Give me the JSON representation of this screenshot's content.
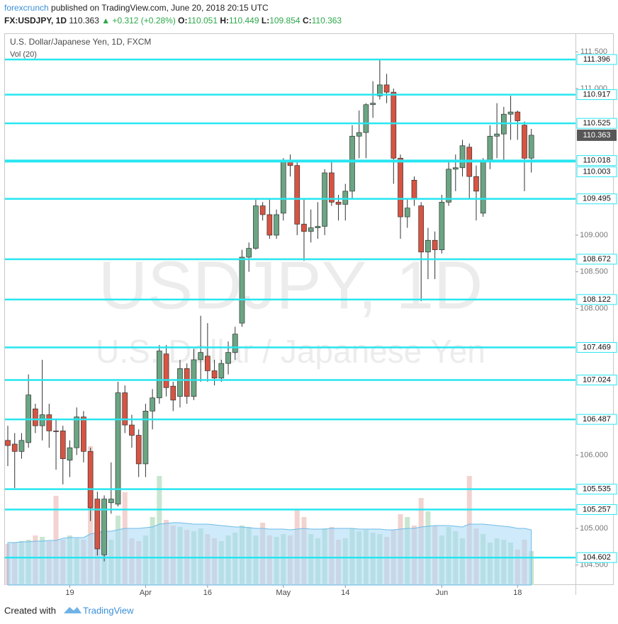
{
  "header": {
    "publisher": "forexcrunch",
    "published": "published on TradingView.com, June 20, 2018 20:15 UTC",
    "symbol": "FX:USDJPY, 1D",
    "change": "▲ +0.312 (+0.28%)",
    "o": "O:",
    "h": "H:",
    "l": "L:",
    "c": "C:"
  },
  "chart_data": {
    "type": "candlestick",
    "title": "U.S. Dollar/Japanese Yen, 1D, FXCM",
    "volume_label": "Vol (20)",
    "watermark": "USDJPY, 1D",
    "watermark_subtitle": "U.S. Dollar / Japanese Yen",
    "categories": [
      null,
      null,
      null,
      null,
      null,
      null,
      null,
      null,
      null,
      "19",
      null,
      null,
      null,
      null,
      null,
      null,
      null,
      null,
      null,
      null,
      "Apr",
      null,
      null,
      null,
      null,
      null,
      null,
      null,
      null,
      "16",
      null,
      null,
      null,
      null,
      null,
      null,
      null,
      null,
      null,
      null,
      "May",
      null,
      null,
      null,
      null,
      null,
      null,
      null,
      null,
      "14",
      null,
      null,
      null,
      null,
      null,
      null,
      null,
      null,
      null,
      null,
      null,
      null,
      null,
      "Jun",
      null,
      null,
      null,
      null,
      null,
      null,
      null,
      null,
      null,
      null,
      "18",
      null,
      null
    ],
    "open": [
      106.2,
      106.15,
      106.05,
      106.17,
      106.63,
      106.4,
      106.55,
      106.33,
      106.33,
      105.93,
      106.1,
      106.52,
      106.05,
      105.4,
      104.64,
      105.35,
      105.33,
      106.85,
      106.41,
      106.27,
      105.88,
      106.6,
      106.78,
      107.38,
      106.94,
      106.8,
      107.18,
      106.8,
      107.3,
      107.35,
      107.15,
      107.05,
      107.25,
      107.4,
      107.8,
      108.7,
      108.82,
      109.4,
      109.28,
      109.0,
      109.3,
      110.0,
      109.95,
      109.15,
      109.05,
      109.1,
      109.12,
      109.85,
      109.45,
      109.42,
      109.6,
      110.35,
      110.4,
      110.78,
      110.9,
      111.05,
      110.95,
      110.05,
      109.25,
      109.75,
      109.4,
      108.77,
      108.93,
      108.8,
      109.45,
      109.9,
      109.92,
      110.2,
      109.8,
      109.3,
      110.0,
      110.35,
      110.38,
      110.65,
      110.68,
      110.5,
      110.051
    ],
    "high": [
      106.4,
      106.3,
      106.3,
      107.1,
      106.7,
      107.3,
      106.7,
      106.5,
      106.4,
      106.2,
      106.65,
      106.6,
      106.1,
      105.5,
      105.45,
      105.9,
      107.0,
      106.95,
      106.55,
      106.35,
      106.7,
      106.9,
      107.5,
      107.5,
      107.0,
      107.3,
      107.25,
      107.45,
      107.9,
      107.8,
      107.3,
      107.3,
      107.55,
      107.75,
      108.8,
      108.9,
      109.5,
      109.45,
      109.5,
      109.35,
      110.05,
      110.1,
      110.0,
      109.5,
      109.35,
      109.45,
      109.9,
      110.0,
      109.55,
      109.7,
      110.5,
      110.7,
      110.8,
      111.1,
      111.4,
      111.2,
      111.0,
      110.1,
      109.5,
      109.8,
      109.45,
      109.1,
      109.05,
      109.55,
      110.0,
      110.1,
      110.3,
      110.25,
      109.95,
      110.05,
      110.5,
      110.8,
      110.75,
      110.9,
      110.7,
      110.55,
      110.449
    ],
    "low": [
      105.85,
      105.55,
      105.95,
      106.1,
      106.3,
      106.2,
      106.1,
      105.8,
      105.6,
      105.7,
      106.0,
      105.9,
      105.1,
      104.63,
      104.55,
      105.2,
      105.3,
      106.3,
      106.1,
      105.7,
      105.7,
      106.35,
      106.7,
      106.8,
      106.6,
      106.65,
      106.7,
      106.75,
      107.0,
      107.0,
      106.95,
      107.0,
      107.1,
      107.3,
      107.75,
      108.5,
      108.8,
      109.2,
      108.95,
      108.95,
      109.2,
      109.8,
      109.0,
      108.65,
      108.9,
      108.95,
      109.0,
      109.4,
      109.2,
      109.2,
      109.5,
      110.05,
      110.05,
      110.6,
      110.85,
      110.8,
      109.7,
      108.95,
      109.1,
      109.4,
      108.1,
      108.4,
      108.4,
      108.75,
      109.4,
      109.6,
      109.8,
      109.5,
      109.2,
      109.25,
      109.9,
      110.05,
      110.0,
      110.3,
      110.3,
      109.6,
      109.854
    ],
    "close": [
      106.13,
      106.05,
      106.2,
      106.82,
      106.4,
      106.55,
      106.33,
      106.32,
      105.95,
      106.1,
      106.52,
      106.05,
      105.28,
      104.72,
      105.4,
      105.4,
      106.85,
      106.41,
      106.27,
      105.88,
      106.6,
      106.78,
      107.42,
      106.92,
      106.75,
      107.18,
      106.8,
      107.3,
      107.4,
      107.15,
      107.05,
      107.25,
      107.4,
      107.65,
      108.7,
      108.82,
      109.4,
      109.28,
      109.0,
      109.28,
      110.0,
      109.95,
      109.15,
      109.05,
      109.1,
      109.12,
      109.85,
      109.45,
      109.42,
      109.6,
      110.35,
      110.4,
      110.78,
      110.8,
      111.05,
      110.95,
      110.05,
      109.25,
      109.37,
      109.5,
      108.77,
      108.93,
      108.8,
      109.45,
      109.9,
      109.92,
      110.22,
      109.8,
      109.6,
      110.0,
      110.35,
      110.38,
      110.65,
      110.68,
      110.56,
      110.05,
      110.363
    ],
    "volume": [
      58,
      60,
      62,
      64,
      70,
      68,
      62,
      126,
      64,
      70,
      66,
      64,
      196,
      110,
      105,
      64,
      98,
      131,
      66,
      62,
      70,
      96,
      154,
      92,
      84,
      82,
      78,
      76,
      80,
      72,
      66,
      62,
      70,
      74,
      84,
      82,
      70,
      88,
      70,
      68,
      72,
      70,
      106,
      96,
      72,
      66,
      80,
      82,
      64,
      66,
      80,
      76,
      78,
      74,
      72,
      68,
      78,
      100,
      96,
      84,
      123,
      104,
      84,
      70,
      82,
      76,
      66,
      154,
      80,
      72,
      60,
      66,
      64,
      60,
      50,
      64,
      48
    ],
    "volume_ma": [
      60,
      60,
      61,
      61,
      62,
      62,
      63,
      63,
      66,
      67,
      67,
      67,
      72,
      74,
      76,
      76,
      78,
      80,
      80,
      80,
      81,
      82,
      86,
      87,
      88,
      88,
      87,
      86,
      86,
      86,
      85,
      84,
      83,
      82,
      82,
      81,
      80,
      80,
      79,
      79,
      79,
      78,
      79,
      80,
      79,
      79,
      79,
      80,
      80,
      80,
      80,
      79,
      79,
      79,
      79,
      78,
      78,
      79,
      80,
      80,
      82,
      83,
      84,
      84,
      84,
      83,
      82,
      86,
      86,
      86,
      85,
      84,
      83,
      82,
      80,
      80,
      78
    ],
    "up_color": "#6ba583",
    "down_color": "#d75442",
    "volume_up_color": "#c8e6d0",
    "volume_down_color": "#f2d3d0",
    "volume_ma_color": "#a8d8f5",
    "level_color": "#27e6f0",
    "ylim": [
      104.227,
      111.57
    ],
    "volume_lim": [
      0,
      200
    ],
    "yticks": [
      {
        "value": 111.5,
        "label": "111.500"
      },
      {
        "value": 111,
        "label": "111.000"
      },
      {
        "value": 109,
        "label": "109.000"
      },
      {
        "value": 108.5,
        "label": "108.500"
      },
      {
        "value": 108,
        "label": "108.000"
      },
      {
        "value": 106,
        "label": "106.000"
      },
      {
        "value": 105,
        "label": "105.000"
      },
      {
        "value": 104.5,
        "label": "104.500"
      }
    ],
    "levels": [
      111.396,
      110.917,
      110.525,
      110.018,
      110.003,
      109.495,
      108.672,
      108.122,
      107.469,
      107.024,
      106.487,
      105.535,
      105.257,
      104.602
    ]
  },
  "footer": {
    "created": "Created with",
    "brand": "TradingView"
  }
}
